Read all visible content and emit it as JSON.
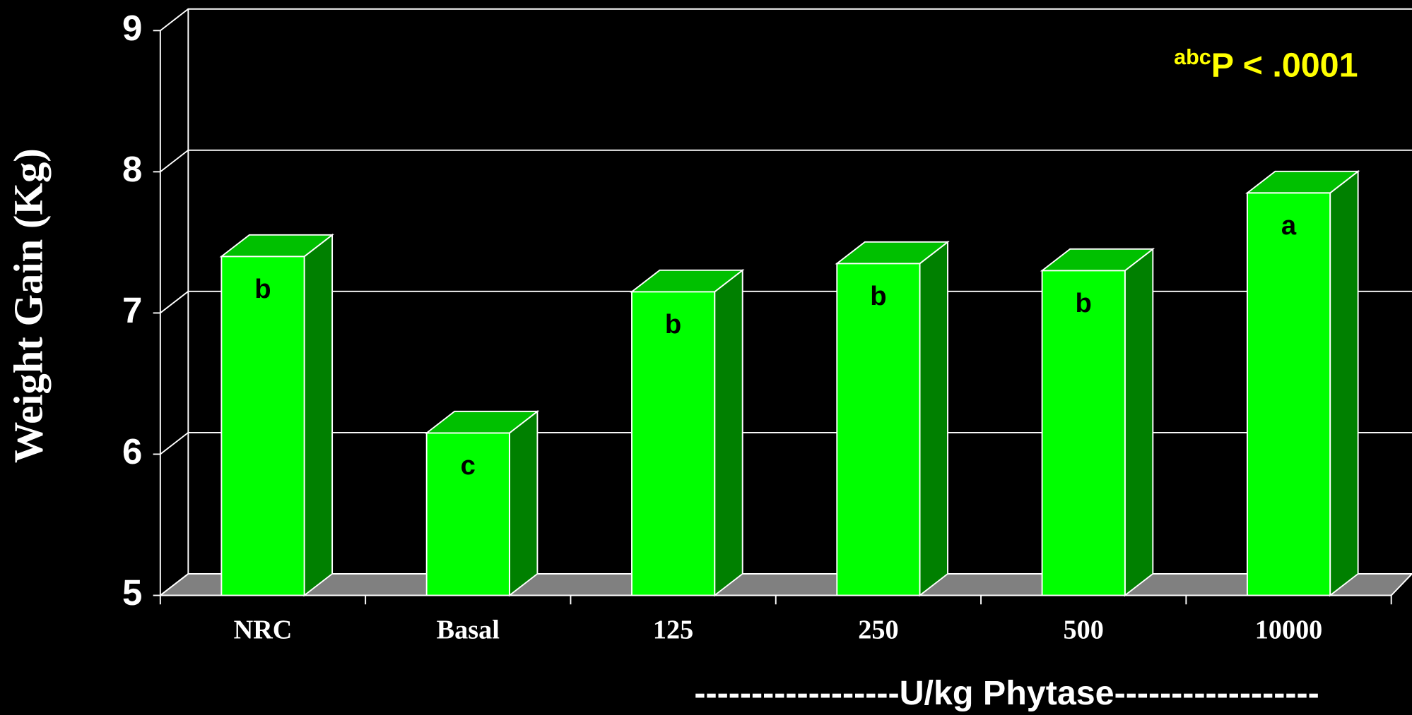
{
  "chart_data": {
    "type": "bar3d",
    "y_label": "Weight Gain (Kg)",
    "x_label": "------------------U/kg Phytase------------------",
    "annotation_sup": "abc",
    "annotation": "P < .0001",
    "categories": [
      "NRC",
      "Basal",
      "125",
      "250",
      "500",
      "10000"
    ],
    "values": [
      7.4,
      6.15,
      7.15,
      7.35,
      7.3,
      7.85
    ],
    "letters": [
      "b",
      "c",
      "b",
      "b",
      "b",
      "a"
    ],
    "color": "#00ff00",
    "ylim": [
      5,
      9
    ],
    "yticks": [
      5,
      6,
      7,
      8,
      9
    ],
    "grid": true
  }
}
